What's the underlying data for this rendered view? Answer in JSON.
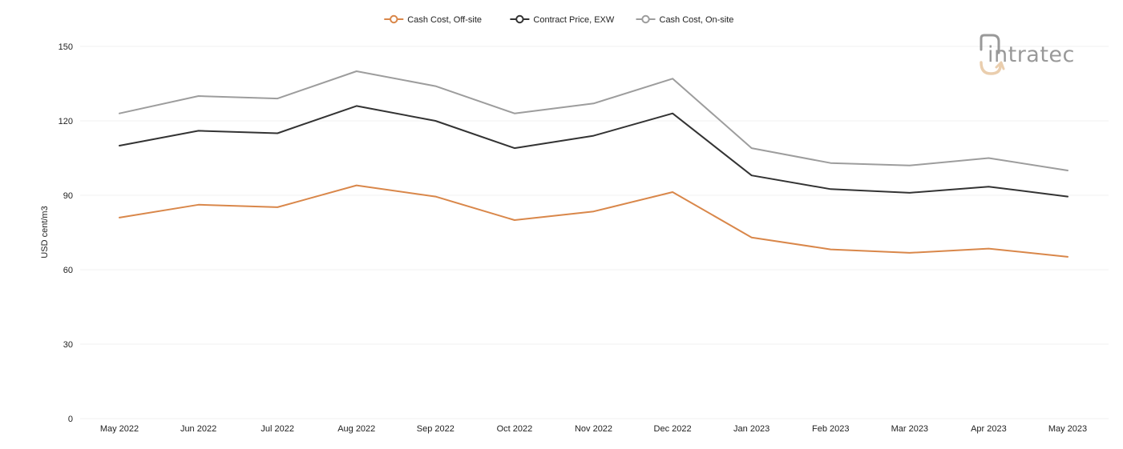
{
  "chart_data": {
    "type": "line",
    "title": "",
    "xlabel": "",
    "ylabel": "USD cent/m3",
    "ylim": [
      0,
      150
    ],
    "yticks": [
      0,
      30,
      60,
      90,
      120,
      150
    ],
    "grid": "horizontal",
    "legend_position": "top-center",
    "categories": [
      "May 2022",
      "Jun 2022",
      "Jul 2022",
      "Aug 2022",
      "Sep 2022",
      "Oct 2022",
      "Nov 2022",
      "Dec 2022",
      "Jan 2023",
      "Feb 2023",
      "Mar 2023",
      "Apr 2023",
      "May 2023"
    ],
    "series": [
      {
        "name": "Cash Cost, Off-site",
        "color": "#d9874a",
        "values": [
          81,
          86.2,
          85.2,
          94,
          89.5,
          80,
          83.5,
          91.3,
          73,
          68.2,
          66.8,
          68.5,
          65.2
        ]
      },
      {
        "name": "Contract Price, EXW",
        "color": "#333333",
        "values": [
          110,
          116,
          115,
          126,
          120,
          109,
          114,
          123,
          98,
          92.5,
          91,
          93.5,
          89.5
        ]
      },
      {
        "name": "Cash Cost, On-site",
        "color": "#9d9d9d",
        "values": [
          123,
          130,
          129,
          140,
          134,
          123,
          127,
          137,
          109,
          103,
          102,
          105,
          100
        ]
      }
    ]
  },
  "watermark": {
    "logo_text": "intratec",
    "icon": "intratec-logo-icon",
    "colors": {
      "text": "#8f8f8f",
      "accent": "#e8c9a6"
    }
  }
}
